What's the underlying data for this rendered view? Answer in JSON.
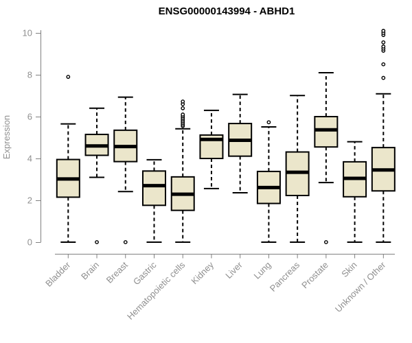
{
  "chart_data": {
    "type": "boxplot",
    "title": "ENSG00000143994 - ABHD1",
    "ylabel": "Expression",
    "xlabel": "",
    "ylim": [
      0,
      10
    ],
    "yticks": [
      0,
      2,
      4,
      6,
      8,
      10
    ],
    "grid": false,
    "legend": "none",
    "box_fill": "#EBE6CB",
    "box_stroke": "#000000",
    "axis_color": "#7f7f7f",
    "label_color": "#8f8f8f",
    "title_color": "#000000",
    "categories": [
      "Bladder",
      "Brain",
      "Breast",
      "Gastric",
      "Hematopoietic cells",
      "Kidney",
      "Liver",
      "Lung",
      "Pancreas",
      "Prostate",
      "Skin",
      "Unknown / Other"
    ],
    "series": [
      {
        "category": "Bladder",
        "whisker_low": 0,
        "q1": 2.15,
        "median": 3.02,
        "q3": 3.95,
        "whisker_high": 5.65,
        "outliers": [
          7.9
        ]
      },
      {
        "category": "Brain",
        "whisker_low": 3.1,
        "q1": 4.15,
        "median": 4.6,
        "q3": 5.15,
        "whisker_high": 6.4,
        "outliers": [
          0
        ]
      },
      {
        "category": "Breast",
        "whisker_low": 2.42,
        "q1": 3.85,
        "median": 4.57,
        "q3": 5.35,
        "whisker_high": 6.93,
        "outliers": [
          0
        ]
      },
      {
        "category": "Gastric",
        "whisker_low": 0,
        "q1": 1.76,
        "median": 2.7,
        "q3": 3.4,
        "whisker_high": 3.94,
        "outliers": []
      },
      {
        "category": "Hematopoietic cells",
        "whisker_low": 0,
        "q1": 1.52,
        "median": 2.29,
        "q3": 3.12,
        "whisker_high": 5.42,
        "outliers": [
          5.55,
          5.62,
          5.7,
          5.78,
          5.86,
          5.94,
          6.02,
          6.1,
          6.4,
          6.6,
          6.72
        ]
      },
      {
        "category": "Kidney",
        "whisker_low": 2.56,
        "q1": 4.0,
        "median": 4.91,
        "q3": 5.12,
        "whisker_high": 6.3,
        "outliers": []
      },
      {
        "category": "Liver",
        "whisker_low": 2.36,
        "q1": 4.11,
        "median": 4.87,
        "q3": 5.67,
        "whisker_high": 7.06,
        "outliers": []
      },
      {
        "category": "Lung",
        "whisker_low": 0,
        "q1": 1.85,
        "median": 2.61,
        "q3": 3.38,
        "whisker_high": 5.51,
        "outliers": [
          5.73
        ]
      },
      {
        "category": "Pancreas",
        "whisker_low": 0,
        "q1": 2.23,
        "median": 3.34,
        "q3": 4.31,
        "whisker_high": 7.01,
        "outliers": []
      },
      {
        "category": "Prostate",
        "whisker_low": 2.85,
        "q1": 4.55,
        "median": 5.37,
        "q3": 6.0,
        "whisker_high": 8.1,
        "outliers": [
          0
        ]
      },
      {
        "category": "Skin",
        "whisker_low": 0,
        "q1": 2.17,
        "median": 3.05,
        "q3": 3.84,
        "whisker_high": 4.8,
        "outliers": []
      },
      {
        "category": "Unknown / Other",
        "whisker_low": 0,
        "q1": 2.45,
        "median": 3.45,
        "q3": 4.52,
        "whisker_high": 7.09,
        "outliers": [
          7.85,
          8.5,
          9.15,
          9.25,
          9.35,
          9.55,
          9.9,
          10.0,
          10.1
        ]
      }
    ]
  }
}
